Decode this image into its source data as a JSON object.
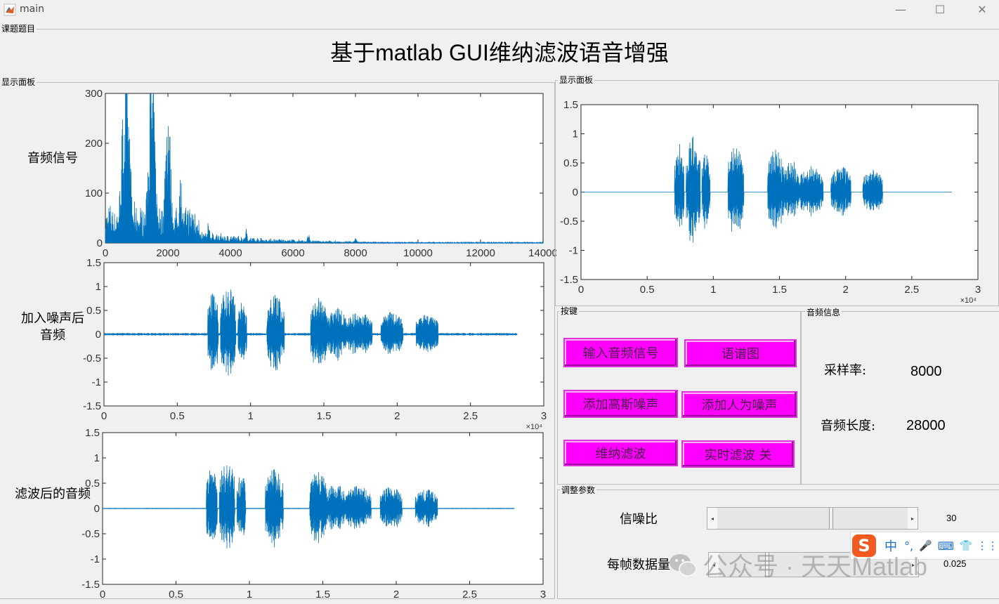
{
  "window": {
    "title": "main",
    "minimize": "—",
    "maximize": "☐",
    "close": "✕"
  },
  "topic_panel": {
    "label": "课题题目",
    "title": "基于matlab GUI维纳滤波语音增强"
  },
  "left_panel": {
    "label": "显示面板",
    "plots": [
      {
        "ylabel": "音频信号",
        "yticks": [
          "300",
          "200",
          "100",
          "0"
        ],
        "xticks": [
          "0",
          "2000",
          "4000",
          "6000",
          "8000",
          "10000",
          "12000",
          "14000"
        ]
      },
      {
        "ylabel": "加入噪声后\n音频",
        "yticks": [
          "1.5",
          "1",
          "0.5",
          "0",
          "-0.5",
          "-1",
          "-1.5"
        ],
        "xticks": [
          "0",
          "0.5",
          "1",
          "1.5",
          "2",
          "2.5",
          "3"
        ],
        "exp": "×10⁴"
      },
      {
        "ylabel": "滤波后的音频",
        "yticks": [
          "1.5",
          "1",
          "0.5",
          "0",
          "-0.5",
          "-1",
          "-1.5"
        ],
        "xticks": [
          "0",
          "0.5",
          "1",
          "1.5",
          "2",
          "2.5",
          "3"
        ]
      }
    ]
  },
  "right_panel": {
    "label": "显示面板",
    "plot": {
      "yticks": [
        "1.5",
        "1",
        "0.5",
        "0",
        "-0.5",
        "-1",
        "-1.5"
      ],
      "xticks": [
        "0",
        "0.5",
        "1",
        "1.5",
        "2",
        "2.5",
        "3"
      ],
      "exp": "×10⁴"
    }
  },
  "keys_panel": {
    "label": "按键",
    "buttons": [
      "输入音频信号",
      "语谱图",
      "添加高斯噪声",
      "添加人为噪声",
      "维纳滤波",
      "实时滤波 关"
    ]
  },
  "info_panel": {
    "label": "音频信息",
    "sample_rate_label": "采样率:",
    "sample_rate_value": "8000",
    "length_label": "音频长度:",
    "length_value": "28000"
  },
  "params_panel": {
    "label": "调整参数",
    "snr_label": "信噪比",
    "snr_value": "30",
    "snr_fraction": 0.6,
    "frame_label": "每帧数据量",
    "frame_value": "0.025",
    "frame_fraction": 0.25
  },
  "overlay": {
    "ime_items": [
      "中",
      "°,",
      "🎤",
      "⌨",
      "👕",
      "⋮⋮"
    ],
    "watermark": "公众号 · 天天Matlab"
  },
  "chart_data": [
    {
      "type": "line",
      "title": "",
      "ylabel": "音频信号",
      "xlim": [
        0,
        14000
      ],
      "ylim": [
        0,
        300
      ],
      "series": [
        {
          "values": []
        }
      ]
    },
    {
      "type": "line",
      "title": "",
      "ylabel": "加入噪声后音频",
      "xlim": [
        0,
        30000
      ],
      "ylim": [
        -1.5,
        1.5
      ]
    },
    {
      "type": "line",
      "title": "",
      "ylabel": "滤波后的音频",
      "xlim": [
        0,
        30000
      ],
      "ylim": [
        -1.5,
        1.5
      ]
    },
    {
      "type": "line",
      "title": "",
      "xlim": [
        0,
        30000
      ],
      "ylim": [
        -1.5,
        1.5
      ]
    }
  ],
  "colors": {
    "line": "#0072bd",
    "button": "#ff00ff",
    "background": "#f0f0f0"
  }
}
